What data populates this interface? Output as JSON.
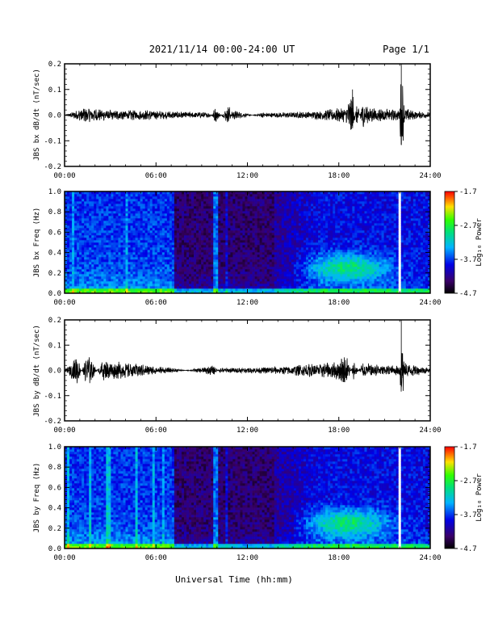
{
  "header": {
    "title": "2021/11/14  00:00-24:00 UT",
    "page": "Page 1/1"
  },
  "xlabel": "Universal Time (hh:mm)",
  "chart_data": [
    {
      "type": "line",
      "ylabel": "JBS bx dB/dt (nT/sec)",
      "xlim": [
        0,
        24
      ],
      "ylim": [
        -0.2,
        0.2
      ],
      "xticks": [
        "00:00",
        "06:00",
        "12:00",
        "18:00",
        "24:00"
      ],
      "yticks": [
        "-0.2",
        "-0.1",
        "0.0",
        "0.1",
        "0.2"
      ],
      "series": [
        {
          "x": [
            0,
            1.3,
            3.0,
            5.0,
            7.0,
            9.5,
            9.9,
            10.8,
            11.0,
            13.0,
            15.0,
            16.5,
            18.5,
            18.9,
            19.2,
            19.5,
            20.0,
            21.0,
            22.0,
            22.1,
            22.3,
            23.0,
            24.0
          ],
          "y": [
            0.0,
            0.03,
            0.02,
            0.02,
            0.015,
            0.01,
            -0.03,
            0.04,
            -0.02,
            0.01,
            0.01,
            0.015,
            0.03,
            0.1,
            -0.06,
            0.05,
            0.03,
            0.025,
            0.02,
            0.21,
            0.03,
            0.015,
            0.01
          ]
        }
      ]
    },
    {
      "type": "heatmap",
      "ylabel": "JBS bx Freq (Hz)",
      "xlim": [
        0,
        24
      ],
      "ylim": [
        0.0,
        1.0
      ],
      "xticks": [
        "00:00",
        "06:00",
        "12:00",
        "18:00",
        "24:00"
      ],
      "yticks": [
        "0.0",
        "0.2",
        "0.4",
        "0.6",
        "0.8",
        "1.0"
      ],
      "colorbar": {
        "label": "Log₁₀ Power",
        "ticks": [
          "-1.7",
          "-2.7",
          "-3.7",
          "-4.7"
        ],
        "range": [
          -4.7,
          -1.7
        ]
      }
    },
    {
      "type": "line",
      "ylabel": "JBS by dB/dt (nT/sec)",
      "xlim": [
        0,
        24
      ],
      "ylim": [
        -0.2,
        0.2
      ],
      "xticks": [
        "00:00",
        "06:00",
        "12:00",
        "18:00",
        "24:00"
      ],
      "yticks": [
        "-0.2",
        "-0.1",
        "0.0",
        "0.1",
        "0.2"
      ],
      "series": [
        {
          "x": [
            0,
            0.8,
            1.5,
            2.5,
            4.0,
            5.5,
            7.0,
            9.8,
            10.2,
            12.0,
            14.0,
            16.0,
            17.5,
            18.5,
            19.0,
            19.5,
            21.0,
            22.0,
            22.1,
            22.3,
            23.5,
            24.0
          ],
          "y": [
            0.0,
            0.06,
            -0.07,
            0.04,
            0.03,
            0.02,
            0.01,
            -0.02,
            0.01,
            0.01,
            0.015,
            0.025,
            0.03,
            0.06,
            -0.04,
            0.03,
            0.02,
            0.02,
            0.2,
            0.03,
            0.015,
            0.01
          ]
        }
      ]
    },
    {
      "type": "heatmap",
      "ylabel": "JBS by Freq (Hz)",
      "xlim": [
        0,
        24
      ],
      "ylim": [
        0.0,
        1.0
      ],
      "xticks": [
        "00:00",
        "06:00",
        "12:00",
        "18:00",
        "24:00"
      ],
      "yticks": [
        "0.0",
        "0.2",
        "0.4",
        "0.6",
        "0.8",
        "1.0"
      ],
      "colorbar": {
        "label": "Log₁₀ Power",
        "ticks": [
          "-1.7",
          "-2.7",
          "-3.7",
          "-4.7"
        ],
        "range": [
          -4.7,
          -1.7
        ]
      }
    }
  ]
}
